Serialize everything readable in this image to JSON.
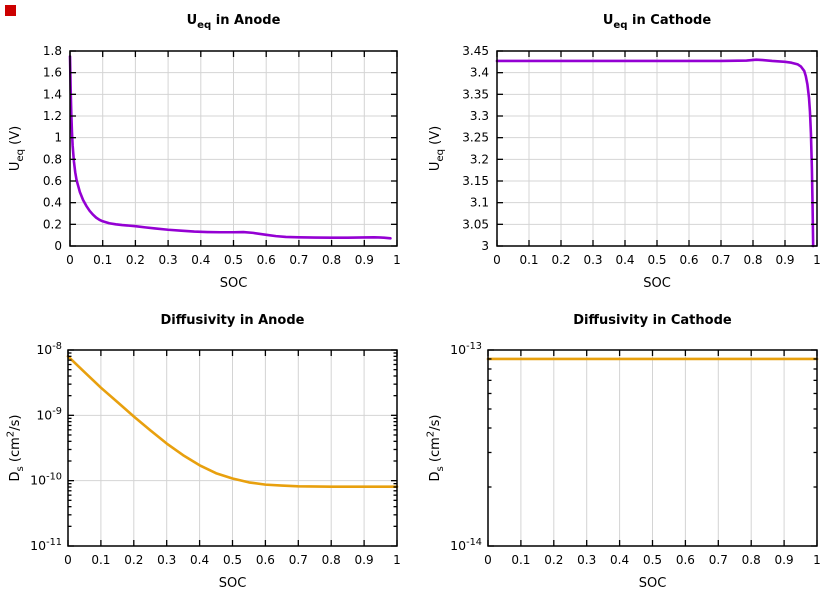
{
  "marker": {
    "color": "#cc0000"
  },
  "style": {
    "grid_color": "#d4d4d4",
    "border_color": "#000000",
    "text_color": "#000000"
  },
  "chart_data": [
    {
      "id": "ueq-anode",
      "type": "line",
      "title_parts": [
        {
          "t": "U"
        },
        {
          "t": "eq",
          "sub": true
        },
        {
          "t": " in Anode"
        }
      ],
      "title_text": "U_eq in Anode",
      "xlabel": "SOC",
      "ylabel_text": "U_eq (V)",
      "ylabel_parts": [
        {
          "t": "U"
        },
        {
          "t": "eq",
          "sub": true
        },
        {
          "t": " (V)"
        }
      ],
      "color": "#9400d3",
      "grid": true,
      "legend": "none",
      "layout": {
        "l": 70,
        "t": 51,
        "r": 397,
        "b": 246
      },
      "x": {
        "min": 0,
        "max": 1,
        "ticks": [
          {
            "v": 0,
            "label": "0"
          },
          {
            "v": 0.1,
            "label": "0.1"
          },
          {
            "v": 0.2,
            "label": "0.2"
          },
          {
            "v": 0.3,
            "label": "0.3"
          },
          {
            "v": 0.4,
            "label": "0.4"
          },
          {
            "v": 0.5,
            "label": "0.5"
          },
          {
            "v": 0.6,
            "label": "0.6"
          },
          {
            "v": 0.7,
            "label": "0.7"
          },
          {
            "v": 0.8,
            "label": "0.8"
          },
          {
            "v": 0.9,
            "label": "0.9"
          },
          {
            "v": 1,
            "label": "1"
          }
        ]
      },
      "y": {
        "type": "linear",
        "min": 0,
        "max": 1.8,
        "ticks": [
          {
            "v": 0,
            "label": "0"
          },
          {
            "v": 0.2,
            "label": "0.2"
          },
          {
            "v": 0.4,
            "label": "0.4"
          },
          {
            "v": 0.6,
            "label": "0.6"
          },
          {
            "v": 0.8,
            "label": "0.8"
          },
          {
            "v": 1,
            "label": "1"
          },
          {
            "v": 1.2,
            "label": "1.2"
          },
          {
            "v": 1.4,
            "label": "1.4"
          },
          {
            "v": 1.6,
            "label": "1.6"
          },
          {
            "v": 1.8,
            "label": "1.8"
          }
        ]
      },
      "points": [
        [
          0,
          1.75
        ],
        [
          0.002,
          1.45
        ],
        [
          0.004,
          1.22
        ],
        [
          0.006,
          1.05
        ],
        [
          0.008,
          0.93
        ],
        [
          0.012,
          0.78
        ],
        [
          0.016,
          0.68
        ],
        [
          0.02,
          0.61
        ],
        [
          0.03,
          0.5
        ],
        [
          0.04,
          0.425
        ],
        [
          0.05,
          0.37
        ],
        [
          0.06,
          0.325
        ],
        [
          0.07,
          0.29
        ],
        [
          0.08,
          0.262
        ],
        [
          0.09,
          0.242
        ],
        [
          0.1,
          0.228
        ],
        [
          0.12,
          0.21
        ],
        [
          0.14,
          0.2
        ],
        [
          0.16,
          0.193
        ],
        [
          0.18,
          0.188
        ],
        [
          0.2,
          0.183
        ],
        [
          0.23,
          0.172
        ],
        [
          0.26,
          0.162
        ],
        [
          0.3,
          0.15
        ],
        [
          0.34,
          0.141
        ],
        [
          0.38,
          0.133
        ],
        [
          0.42,
          0.129
        ],
        [
          0.46,
          0.127
        ],
        [
          0.5,
          0.127
        ],
        [
          0.53,
          0.129
        ],
        [
          0.56,
          0.121
        ],
        [
          0.6,
          0.103
        ],
        [
          0.63,
          0.091
        ],
        [
          0.66,
          0.084
        ],
        [
          0.7,
          0.08
        ],
        [
          0.75,
          0.078
        ],
        [
          0.8,
          0.077
        ],
        [
          0.85,
          0.077
        ],
        [
          0.9,
          0.079
        ],
        [
          0.93,
          0.08
        ],
        [
          0.96,
          0.077
        ],
        [
          0.98,
          0.071
        ]
      ]
    },
    {
      "id": "ueq-cathode",
      "type": "line",
      "title_parts": [
        {
          "t": "U"
        },
        {
          "t": "eq",
          "sub": true
        },
        {
          "t": " in Cathode"
        }
      ],
      "title_text": "U_eq in Cathode",
      "xlabel": "SOC",
      "ylabel_text": "U_eq (V)",
      "ylabel_parts": [
        {
          "t": "U"
        },
        {
          "t": "eq",
          "sub": true
        },
        {
          "t": " (V)"
        }
      ],
      "color": "#9400d3",
      "grid": true,
      "legend": "none",
      "layout": {
        "l": 77,
        "t": 51,
        "r": 397,
        "b": 246
      },
      "x": {
        "min": 0,
        "max": 1,
        "ticks": [
          {
            "v": 0,
            "label": "0"
          },
          {
            "v": 0.1,
            "label": "0.1"
          },
          {
            "v": 0.2,
            "label": "0.2"
          },
          {
            "v": 0.3,
            "label": "0.3"
          },
          {
            "v": 0.4,
            "label": "0.4"
          },
          {
            "v": 0.5,
            "label": "0.5"
          },
          {
            "v": 0.6,
            "label": "0.6"
          },
          {
            "v": 0.7,
            "label": "0.7"
          },
          {
            "v": 0.8,
            "label": "0.8"
          },
          {
            "v": 0.9,
            "label": "0.9"
          },
          {
            "v": 1,
            "label": "1"
          }
        ]
      },
      "y": {
        "type": "linear",
        "min": 3,
        "max": 3.45,
        "ticks": [
          {
            "v": 3,
            "label": "3"
          },
          {
            "v": 3.05,
            "label": "3.05"
          },
          {
            "v": 3.1,
            "label": "3.1"
          },
          {
            "v": 3.15,
            "label": "3.15"
          },
          {
            "v": 3.2,
            "label": "3.2"
          },
          {
            "v": 3.25,
            "label": "3.25"
          },
          {
            "v": 3.3,
            "label": "3.3"
          },
          {
            "v": 3.35,
            "label": "3.35"
          },
          {
            "v": 3.4,
            "label": "3.4"
          },
          {
            "v": 3.45,
            "label": "3.45"
          }
        ]
      },
      "points": [
        [
          0,
          3.427
        ],
        [
          0.05,
          3.427
        ],
        [
          0.1,
          3.427
        ],
        [
          0.2,
          3.427
        ],
        [
          0.3,
          3.427
        ],
        [
          0.4,
          3.427
        ],
        [
          0.5,
          3.427
        ],
        [
          0.6,
          3.427
        ],
        [
          0.7,
          3.427
        ],
        [
          0.78,
          3.428
        ],
        [
          0.81,
          3.43
        ],
        [
          0.83,
          3.429
        ],
        [
          0.86,
          3.427
        ],
        [
          0.9,
          3.425
        ],
        [
          0.92,
          3.423
        ],
        [
          0.94,
          3.419
        ],
        [
          0.95,
          3.414
        ],
        [
          0.96,
          3.404
        ],
        [
          0.965,
          3.392
        ],
        [
          0.97,
          3.373
        ],
        [
          0.975,
          3.342
        ],
        [
          0.978,
          3.31
        ],
        [
          0.981,
          3.26
        ],
        [
          0.984,
          3.18
        ],
        [
          0.986,
          3.1
        ],
        [
          0.988,
          3.0
        ]
      ]
    },
    {
      "id": "diff-anode",
      "type": "line",
      "title_parts": [
        {
          "t": "Diffusivity in Anode"
        }
      ],
      "title_text": "Diffusivity in Anode",
      "xlabel": "SOC",
      "ylabel_text": "D_s (cm^2/s)",
      "ylabel_parts": [
        {
          "t": "D"
        },
        {
          "t": "s",
          "sub": true
        },
        {
          "t": " (cm"
        },
        {
          "t": "2",
          "sup": true
        },
        {
          "t": "/s)"
        }
      ],
      "color": "#e8a00e",
      "grid": true,
      "legend": "none",
      "layout": {
        "l": 68,
        "t": 50,
        "r": 397,
        "b": 246
      },
      "x": {
        "min": 0,
        "max": 1,
        "ticks": [
          {
            "v": 0,
            "label": "0"
          },
          {
            "v": 0.1,
            "label": "0.1"
          },
          {
            "v": 0.2,
            "label": "0.2"
          },
          {
            "v": 0.3,
            "label": "0.3"
          },
          {
            "v": 0.4,
            "label": "0.4"
          },
          {
            "v": 0.5,
            "label": "0.5"
          },
          {
            "v": 0.6,
            "label": "0.6"
          },
          {
            "v": 0.7,
            "label": "0.7"
          },
          {
            "v": 0.8,
            "label": "0.8"
          },
          {
            "v": 0.9,
            "label": "0.9"
          },
          {
            "v": 1,
            "label": "1"
          }
        ]
      },
      "y": {
        "type": "log",
        "minExp": -11,
        "maxExp": -8,
        "ticks": [
          {
            "exp": -11,
            "label_parts": [
              {
                "t": "10"
              },
              {
                "t": "-11",
                "sup": true
              }
            ]
          },
          {
            "exp": -10,
            "label_parts": [
              {
                "t": "10"
              },
              {
                "t": "-10",
                "sup": true
              }
            ]
          },
          {
            "exp": -9,
            "label_parts": [
              {
                "t": "10"
              },
              {
                "t": "-9",
                "sup": true
              }
            ]
          },
          {
            "exp": -8,
            "label_parts": [
              {
                "t": "10"
              },
              {
                "t": "-8",
                "sup": true
              }
            ]
          }
        ]
      },
      "points": [
        [
          0,
          8e-09
        ],
        [
          0.05,
          4.6e-09
        ],
        [
          0.1,
          2.65e-09
        ],
        [
          0.15,
          1.6e-09
        ],
        [
          0.2,
          9.6e-10
        ],
        [
          0.25,
          5.9e-10
        ],
        [
          0.3,
          3.7e-10
        ],
        [
          0.35,
          2.45e-10
        ],
        [
          0.4,
          1.72e-10
        ],
        [
          0.45,
          1.3e-10
        ],
        [
          0.5,
          1.08e-10
        ],
        [
          0.55,
          9.4e-11
        ],
        [
          0.6,
          8.7e-11
        ],
        [
          0.65,
          8.4e-11
        ],
        [
          0.7,
          8.2e-11
        ],
        [
          0.8,
          8.1e-11
        ],
        [
          0.9,
          8.1e-11
        ],
        [
          1.0,
          8.1e-11
        ]
      ]
    },
    {
      "id": "diff-cathode",
      "type": "line",
      "title_parts": [
        {
          "t": "Diffusivity in Cathode"
        }
      ],
      "title_text": "Diffusivity in Cathode",
      "xlabel": "SOC",
      "ylabel_text": "D_s (cm^2/s)",
      "ylabel_parts": [
        {
          "t": "D"
        },
        {
          "t": "s",
          "sub": true
        },
        {
          "t": " (cm"
        },
        {
          "t": "2",
          "sup": true
        },
        {
          "t": "/s)"
        }
      ],
      "color": "#e8a00e",
      "grid": true,
      "legend": "none",
      "layout": {
        "l": 68,
        "t": 50,
        "r": 397,
        "b": 246
      },
      "x": {
        "min": 0,
        "max": 1,
        "ticks": [
          {
            "v": 0,
            "label": "0"
          },
          {
            "v": 0.1,
            "label": "0.1"
          },
          {
            "v": 0.2,
            "label": "0.2"
          },
          {
            "v": 0.3,
            "label": "0.3"
          },
          {
            "v": 0.4,
            "label": "0.4"
          },
          {
            "v": 0.5,
            "label": "0.5"
          },
          {
            "v": 0.6,
            "label": "0.6"
          },
          {
            "v": 0.7,
            "label": "0.7"
          },
          {
            "v": 0.8,
            "label": "0.8"
          },
          {
            "v": 0.9,
            "label": "0.9"
          },
          {
            "v": 1,
            "label": "1"
          }
        ]
      },
      "y": {
        "type": "log",
        "minExp": -14,
        "maxExp": -13,
        "ticks": [
          {
            "exp": -14,
            "label_parts": [
              {
                "t": "10"
              },
              {
                "t": "-14",
                "sup": true
              }
            ]
          },
          {
            "exp": -13,
            "label_parts": [
              {
                "t": "10"
              },
              {
                "t": "-13",
                "sup": true
              }
            ]
          }
        ]
      },
      "points": [
        [
          0,
          9e-14
        ],
        [
          0.25,
          9e-14
        ],
        [
          0.5,
          9e-14
        ],
        [
          0.75,
          9e-14
        ],
        [
          1.0,
          9e-14
        ]
      ]
    }
  ]
}
